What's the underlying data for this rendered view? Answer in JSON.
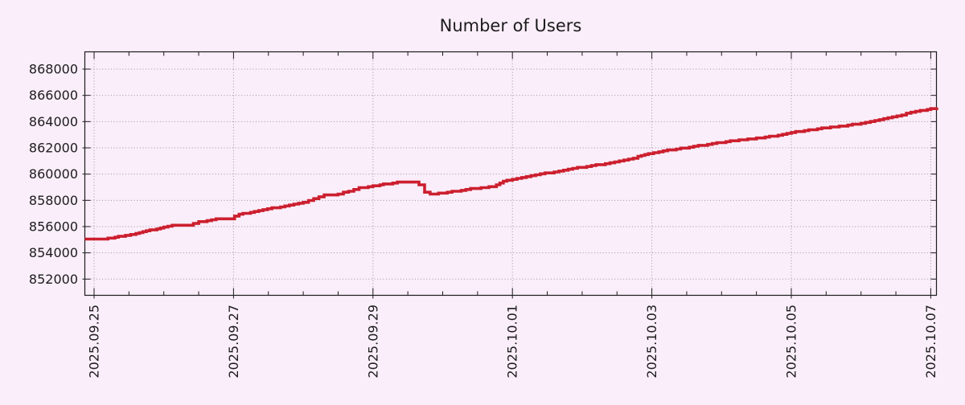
{
  "page": {
    "background": "#faeefa"
  },
  "chart_data": {
    "type": "line",
    "title": "Number of Users",
    "legend": null,
    "grid": {
      "show": true,
      "style": "dotted",
      "major_x_every_days": 2,
      "major_y_every": 2000
    },
    "colors": {
      "background": "#faeefa",
      "line": "#cc1f2e",
      "grid": "#9b939b",
      "axis": "#1c1c1c",
      "text": "#1c1c1c"
    },
    "x_axis": {
      "kind": "time",
      "units": "days since 2025.09.25",
      "range_days": [
        -0.133,
        12.086
      ],
      "minor_tick_step_days": 0.5,
      "label_rotation_deg": -90,
      "major_ticks": [
        {
          "t": 0,
          "label": "2025.09.25"
        },
        {
          "t": 2,
          "label": "2025.09.27"
        },
        {
          "t": 4,
          "label": "2025.09.29"
        },
        {
          "t": 6,
          "label": "2025.10.01"
        },
        {
          "t": 8,
          "label": "2025.10.03"
        },
        {
          "t": 10,
          "label": "2025.10.05"
        },
        {
          "t": 12,
          "label": "2025.10.07"
        }
      ]
    },
    "y_axis": {
      "range": [
        850760,
        869320
      ],
      "ticks": [
        {
          "v": 852000,
          "label": "852000"
        },
        {
          "v": 854000,
          "label": "854000"
        },
        {
          "v": 856000,
          "label": "856000"
        },
        {
          "v": 858000,
          "label": "858000"
        },
        {
          "v": 860000,
          "label": "860000"
        },
        {
          "v": 862000,
          "label": "862000"
        },
        {
          "v": 864000,
          "label": "864000"
        },
        {
          "v": 866000,
          "label": "866000"
        },
        {
          "v": 868000,
          "label": "868000"
        }
      ]
    },
    "series": [
      {
        "name": "Number of Users",
        "color": "#cc1f2e",
        "points": [
          [
            -0.133,
            855020
          ],
          [
            0,
            855030
          ],
          [
            0.15,
            855060
          ],
          [
            0.3,
            855200
          ],
          [
            0.45,
            855340
          ],
          [
            0.6,
            855500
          ],
          [
            0.75,
            855660
          ],
          [
            0.9,
            855830
          ],
          [
            1.0,
            855950
          ],
          [
            1.12,
            856080
          ],
          [
            1.35,
            856130
          ],
          [
            1.5,
            856350
          ],
          [
            1.62,
            856470
          ],
          [
            1.75,
            856560
          ],
          [
            1.95,
            856620
          ],
          [
            2.08,
            856930
          ],
          [
            2.3,
            857130
          ],
          [
            2.55,
            857400
          ],
          [
            2.8,
            857650
          ],
          [
            3.0,
            857870
          ],
          [
            3.15,
            858120
          ],
          [
            3.3,
            858380
          ],
          [
            3.5,
            858450
          ],
          [
            3.65,
            858720
          ],
          [
            3.8,
            858950
          ],
          [
            4.0,
            859090
          ],
          [
            4.15,
            859240
          ],
          [
            4.35,
            859370
          ],
          [
            4.58,
            859400
          ],
          [
            4.66,
            859150
          ],
          [
            4.74,
            858600
          ],
          [
            4.82,
            858480
          ],
          [
            5.0,
            858570
          ],
          [
            5.2,
            858720
          ],
          [
            5.4,
            858870
          ],
          [
            5.55,
            858980
          ],
          [
            5.72,
            859050
          ],
          [
            5.82,
            859350
          ],
          [
            5.92,
            859520
          ],
          [
            6.0,
            859630
          ],
          [
            6.2,
            859840
          ],
          [
            6.4,
            860010
          ],
          [
            6.6,
            860180
          ],
          [
            6.8,
            860350
          ],
          [
            7.0,
            860540
          ],
          [
            7.2,
            860690
          ],
          [
            7.4,
            860880
          ],
          [
            7.6,
            861080
          ],
          [
            7.8,
            861320
          ],
          [
            7.95,
            861560
          ],
          [
            8.1,
            861730
          ],
          [
            8.35,
            861900
          ],
          [
            8.6,
            862120
          ],
          [
            8.8,
            862270
          ],
          [
            9.0,
            862420
          ],
          [
            9.25,
            862590
          ],
          [
            9.5,
            862740
          ],
          [
            9.75,
            862910
          ],
          [
            10.0,
            863170
          ],
          [
            10.25,
            863360
          ],
          [
            10.5,
            863530
          ],
          [
            10.75,
            863690
          ],
          [
            11.0,
            863870
          ],
          [
            11.2,
            864100
          ],
          [
            11.45,
            864360
          ],
          [
            11.65,
            864620
          ],
          [
            11.85,
            864820
          ],
          [
            12.0,
            864990
          ],
          [
            12.086,
            865080
          ]
        ]
      }
    ]
  }
}
